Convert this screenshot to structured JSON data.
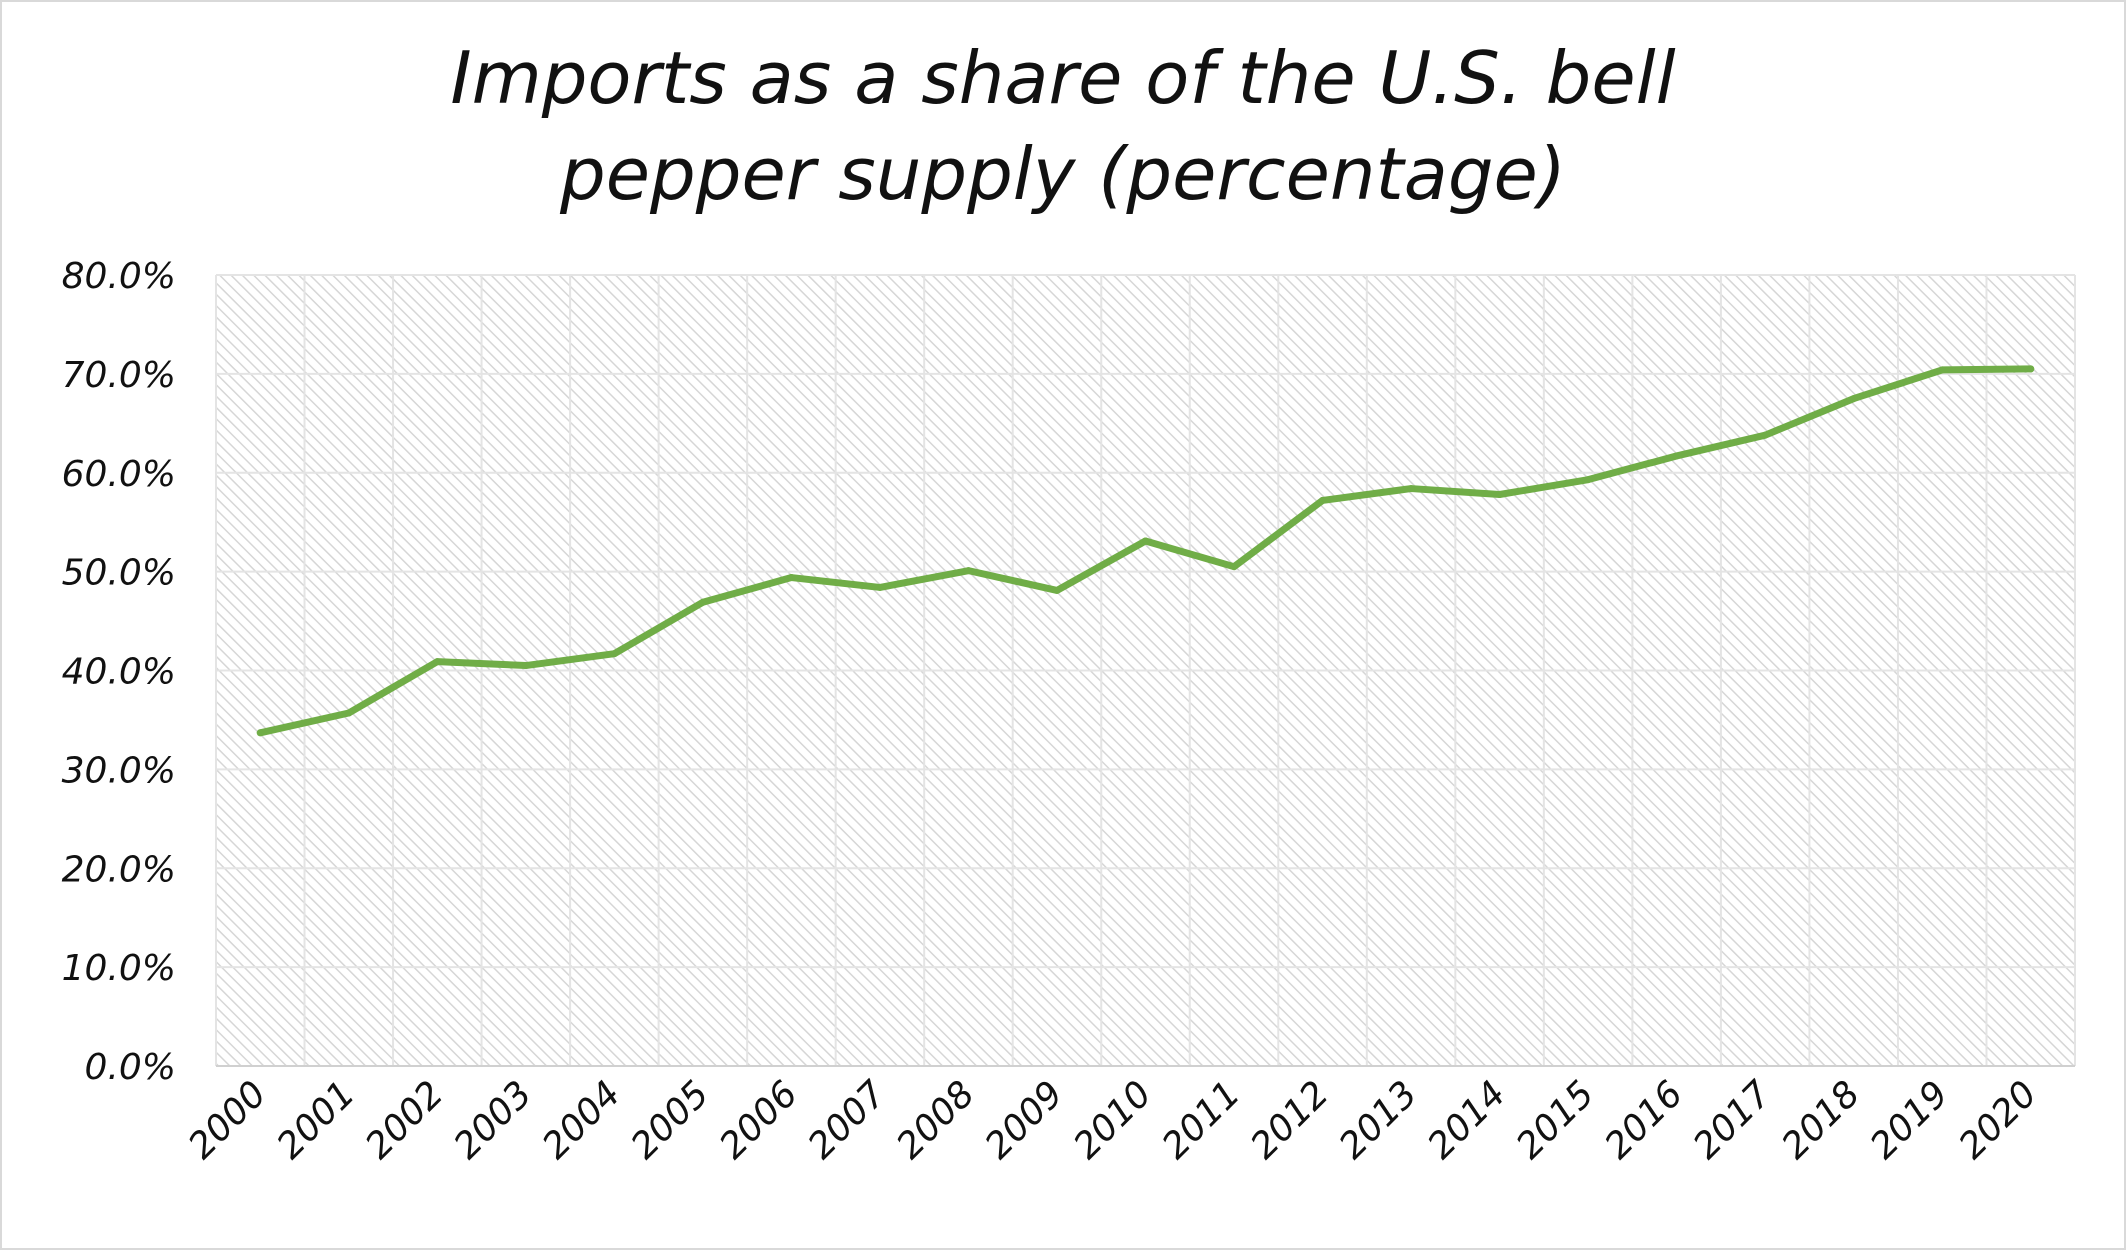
{
  "chart_data": {
    "type": "line",
    "title": "Imports as a share of the U.S. bell pepper supply (percentage)",
    "title_lines": [
      "Imports as a share of the U.S. bell",
      "pepper supply (percentage)"
    ],
    "xlabel": "",
    "ylabel": "",
    "categories": [
      "2000",
      "2001",
      "2002",
      "2003",
      "2004",
      "2005",
      "2006",
      "2007",
      "2008",
      "2009",
      "2010",
      "2011",
      "2012",
      "2013",
      "2014",
      "2015",
      "2016",
      "2017",
      "2018",
      "2019",
      "2020"
    ],
    "series": [
      {
        "values": [
          33.7,
          35.7,
          40.9,
          40.5,
          41.7,
          46.9,
          49.4,
          48.4,
          50.1,
          48.1,
          53.1,
          50.5,
          57.2,
          58.4,
          57.8,
          59.3,
          61.7,
          63.8,
          67.5,
          70.4,
          70.5
        ],
        "color": "#70ad47"
      }
    ],
    "ylim": [
      0,
      80
    ],
    "yticks": [
      0,
      10,
      20,
      30,
      40,
      50,
      60,
      70,
      80
    ],
    "ytick_labels": [
      "0.0%",
      "10.0%",
      "20.0%",
      "30.0%",
      "40.0%",
      "50.0%",
      "60.0%",
      "70.0%",
      "80.0%"
    ],
    "grid": true,
    "plot_background": "diagonal hatch, light gray",
    "legend": "none"
  }
}
